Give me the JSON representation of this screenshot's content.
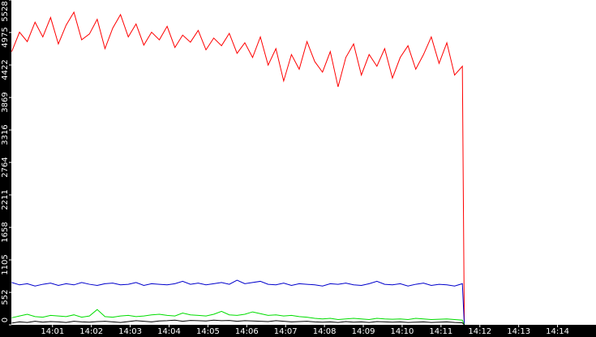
{
  "chart_data": {
    "type": "line",
    "x": [
      839.95,
      840.15,
      840.35,
      840.55,
      840.75,
      840.95,
      841.15,
      841.35,
      841.55,
      841.75,
      841.95,
      842.15,
      842.35,
      842.55,
      842.75,
      842.95,
      843.15,
      843.35,
      843.55,
      843.75,
      843.95,
      844.15,
      844.35,
      844.55,
      844.75,
      844.95,
      845.15,
      845.35,
      845.55,
      845.75,
      845.95,
      846.15,
      846.35,
      846.55,
      846.75,
      846.95,
      847.15,
      847.35,
      847.55,
      847.75,
      847.95,
      848.15,
      848.35,
      848.55,
      848.75,
      848.95,
      849.15,
      849.35,
      849.55,
      849.75,
      849.95,
      850.15,
      850.35,
      850.55,
      850.75,
      850.95,
      851.15,
      851.35,
      851.55,
      851.6
    ],
    "series": [
      {
        "color": "#ff0000",
        "values": [
          4650,
          4980,
          4820,
          5150,
          4900,
          5230,
          4780,
          5100,
          5320,
          4850,
          4950,
          5200,
          4700,
          5050,
          5280,
          4900,
          5120,
          4760,
          4980,
          4850,
          5080,
          4720,
          4930,
          4810,
          5010,
          4680,
          4880,
          4750,
          4960,
          4620,
          4800,
          4550,
          4900,
          4420,
          4700,
          4150,
          4600,
          4350,
          4820,
          4480,
          4300,
          4650,
          4050,
          4550,
          4780,
          4250,
          4600,
          4400,
          4700,
          4200,
          4550,
          4750,
          4350,
          4600,
          4900,
          4450,
          4800,
          4250,
          4400,
          0
        ]
      },
      {
        "color": "#0000cc",
        "values": [
          720,
          680,
          700,
          660,
          690,
          710,
          670,
          700,
          680,
          720,
          690,
          670,
          700,
          710,
          680,
          690,
          720,
          670,
          700,
          690,
          680,
          700,
          740,
          690,
          710,
          680,
          700,
          720,
          690,
          760,
          700,
          720,
          740,
          690,
          680,
          710,
          670,
          700,
          690,
          680,
          660,
          700,
          690,
          710,
          680,
          670,
          700,
          740,
          690,
          680,
          700,
          660,
          690,
          710,
          670,
          690,
          680,
          660,
          700,
          0
        ]
      },
      {
        "color": "#00dd00",
        "values": [
          120,
          150,
          180,
          140,
          130,
          160,
          150,
          140,
          170,
          130,
          150,
          260,
          140,
          130,
          150,
          160,
          140,
          150,
          170,
          180,
          160,
          150,
          200,
          170,
          160,
          150,
          180,
          230,
          170,
          160,
          180,
          220,
          190,
          160,
          170,
          150,
          160,
          140,
          130,
          110,
          100,
          110,
          90,
          100,
          110,
          100,
          90,
          110,
          100,
          95,
          100,
          90,
          110,
          100,
          90,
          95,
          100,
          90,
          80,
          0
        ]
      },
      {
        "color": "#000000",
        "values": [
          30,
          50,
          40,
          60,
          45,
          55,
          50,
          40,
          60,
          50,
          45,
          55,
          60,
          50,
          40,
          55,
          70,
          60,
          50,
          65,
          70,
          80,
          60,
          75,
          70,
          65,
          80,
          70,
          75,
          60,
          70,
          65,
          60,
          55,
          70,
          60,
          50,
          55,
          60,
          50,
          45,
          50,
          40,
          55,
          45,
          50,
          40,
          55,
          50,
          45,
          50,
          40,
          45,
          50,
          40,
          45,
          50,
          40,
          35,
          0
        ]
      }
    ],
    "xlim": [
      839.94,
      854.99
    ],
    "xticks": [
      {
        "value": 841,
        "label": "14:01"
      },
      {
        "value": 842,
        "label": "14:02"
      },
      {
        "value": 843,
        "label": "14:03"
      },
      {
        "value": 844,
        "label": "14:04"
      },
      {
        "value": 845,
        "label": "14:05"
      },
      {
        "value": 846,
        "label": "14:06"
      },
      {
        "value": 847,
        "label": "14:07"
      },
      {
        "value": 848,
        "label": "14:08"
      },
      {
        "value": 849,
        "label": "14:09"
      },
      {
        "value": 850,
        "label": "14:10"
      },
      {
        "value": 851,
        "label": "14:11"
      },
      {
        "value": 852,
        "label": "14:12"
      },
      {
        "value": 853,
        "label": "14:13"
      },
      {
        "value": 854,
        "label": "14:14"
      }
    ],
    "ylim": [
      0,
      5528
    ],
    "yticks": [
      0,
      552,
      1105,
      1658,
      2211,
      2764,
      3316,
      3869,
      4422,
      4975,
      5528
    ]
  }
}
